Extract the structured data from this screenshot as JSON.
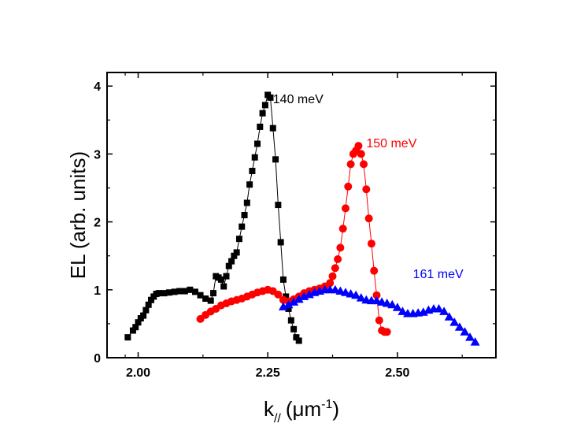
{
  "chart_data": {
    "type": "line",
    "title": "",
    "xlabel": "k",
    "xlabel_subscript": "//",
    "xlabel_unit": "(μm",
    "xlabel_unit_exp": "-1",
    "xlabel_close": ")",
    "ylabel": "EL (arb. units)",
    "xlim": [
      1.94,
      2.69
    ],
    "ylim": [
      0,
      4.2
    ],
    "xticks": [
      2.0,
      2.25,
      2.5
    ],
    "xtick_labels": [
      "2.00",
      "2.25",
      "2.50"
    ],
    "yticks": [
      0,
      1,
      2,
      3,
      4
    ],
    "ytick_labels": [
      "0",
      "1",
      "2",
      "3",
      "4"
    ],
    "series": [
      {
        "name": "140 meV",
        "color": "#000000",
        "marker": "square",
        "label_x": 2.26,
        "label_y": 3.75,
        "x": [
          1.98,
          1.99,
          1.995,
          2.0,
          2.005,
          2.01,
          2.015,
          2.02,
          2.025,
          2.03,
          2.035,
          2.04,
          2.05,
          2.06,
          2.07,
          2.08,
          2.09,
          2.1,
          2.11,
          2.12,
          2.13,
          2.14,
          2.145,
          2.15,
          2.155,
          2.16,
          2.165,
          2.17,
          2.175,
          2.18,
          2.185,
          2.19,
          2.195,
          2.2,
          2.205,
          2.21,
          2.215,
          2.22,
          2.225,
          2.23,
          2.235,
          2.24,
          2.245,
          2.25,
          2.255,
          2.26,
          2.265,
          2.27,
          2.275,
          2.28,
          2.285,
          2.29,
          2.295,
          2.3,
          2.305,
          2.31
        ],
        "y": [
          0.3,
          0.4,
          0.45,
          0.52,
          0.58,
          0.62,
          0.7,
          0.78,
          0.85,
          0.9,
          0.94,
          0.95,
          0.95,
          0.96,
          0.97,
          0.98,
          0.98,
          1.0,
          0.97,
          0.92,
          0.87,
          0.84,
          0.95,
          1.2,
          1.18,
          1.15,
          1.05,
          1.2,
          1.35,
          1.42,
          1.5,
          1.55,
          1.75,
          1.93,
          2.1,
          2.28,
          2.55,
          2.75,
          2.95,
          3.15,
          3.4,
          3.6,
          3.72,
          3.87,
          3.83,
          3.38,
          2.92,
          2.25,
          1.7,
          1.15,
          0.9,
          0.72,
          0.55,
          0.42,
          0.3,
          0.25
        ]
      },
      {
        "name": "150 meV",
        "color": "#ff0000",
        "marker": "circle",
        "label_x": 2.44,
        "label_y": 3.1,
        "x": [
          2.12,
          2.13,
          2.14,
          2.15,
          2.16,
          2.17,
          2.18,
          2.19,
          2.2,
          2.21,
          2.22,
          2.23,
          2.24,
          2.25,
          2.26,
          2.27,
          2.28,
          2.29,
          2.3,
          2.31,
          2.32,
          2.33,
          2.34,
          2.35,
          2.36,
          2.37,
          2.375,
          2.38,
          2.385,
          2.39,
          2.395,
          2.4,
          2.405,
          2.41,
          2.415,
          2.42,
          2.425,
          2.43,
          2.435,
          2.44,
          2.445,
          2.45,
          2.455,
          2.46,
          2.465,
          2.47,
          2.475,
          2.48
        ],
        "y": [
          0.57,
          0.63,
          0.68,
          0.72,
          0.77,
          0.8,
          0.83,
          0.85,
          0.87,
          0.9,
          0.93,
          0.96,
          0.98,
          1.0,
          0.98,
          0.93,
          0.85,
          0.83,
          0.86,
          0.9,
          0.95,
          0.98,
          1.0,
          1.02,
          1.05,
          1.1,
          1.2,
          1.32,
          1.45,
          1.62,
          1.9,
          2.2,
          2.52,
          2.85,
          3.0,
          3.05,
          3.12,
          3.0,
          2.85,
          2.48,
          2.05,
          1.68,
          1.28,
          0.92,
          0.55,
          0.4,
          0.38,
          0.38
        ]
      },
      {
        "name": "161 meV",
        "color": "#0000ff",
        "marker": "triangle",
        "label_x": 2.53,
        "label_y": 1.17,
        "x": [
          2.28,
          2.29,
          2.3,
          2.31,
          2.32,
          2.33,
          2.34,
          2.35,
          2.36,
          2.37,
          2.38,
          2.39,
          2.4,
          2.41,
          2.42,
          2.43,
          2.44,
          2.45,
          2.46,
          2.47,
          2.48,
          2.49,
          2.5,
          2.51,
          2.52,
          2.53,
          2.54,
          2.55,
          2.56,
          2.57,
          2.58,
          2.59,
          2.6,
          2.61,
          2.62,
          2.63,
          2.64,
          2.65
        ],
        "y": [
          0.75,
          0.78,
          0.82,
          0.86,
          0.9,
          0.93,
          0.96,
          0.98,
          1.0,
          1.0,
          1.0,
          0.98,
          0.96,
          0.94,
          0.92,
          0.88,
          0.85,
          0.84,
          0.84,
          0.82,
          0.8,
          0.78,
          0.74,
          0.68,
          0.65,
          0.65,
          0.66,
          0.67,
          0.7,
          0.72,
          0.72,
          0.68,
          0.6,
          0.52,
          0.45,
          0.38,
          0.3,
          0.23
        ]
      }
    ]
  }
}
